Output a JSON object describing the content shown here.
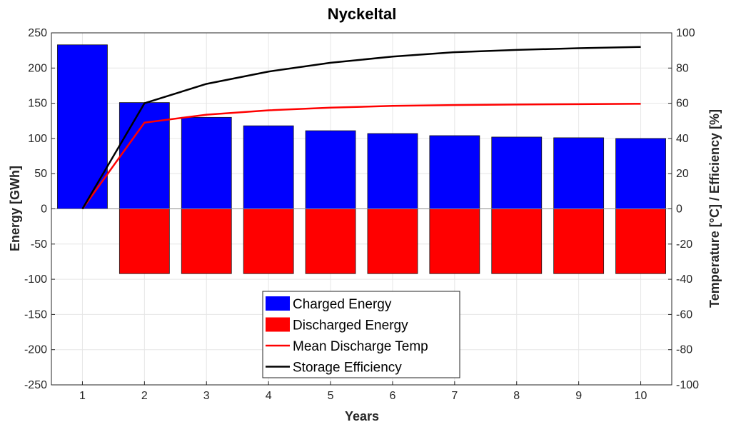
{
  "chart_data": {
    "type": "bar",
    "title": "Nyckeltal",
    "xlabel": "Years",
    "ylabel_left": "Energy [GWh]",
    "ylabel_right": "Temperature [°C] / Efficiency [%]",
    "x": [
      1,
      2,
      3,
      4,
      5,
      6,
      7,
      8,
      9,
      10
    ],
    "xlim": [
      0.5,
      10.5
    ],
    "ylim_left": [
      -250,
      250
    ],
    "ylim_right": [
      -100,
      100
    ],
    "yticks_left": [
      -250,
      -200,
      -150,
      -100,
      -50,
      0,
      50,
      100,
      150,
      200,
      250
    ],
    "yticks_right": [
      -100,
      -80,
      -60,
      -40,
      -20,
      0,
      20,
      40,
      60,
      80,
      100
    ],
    "grid": true,
    "legend_position": "bottom-center",
    "series": [
      {
        "name": "Charged Energy",
        "kind": "bar",
        "axis": "left",
        "color": "#0000ff",
        "values": [
          233,
          151,
          130,
          118,
          111,
          107,
          104,
          102,
          101,
          100
        ]
      },
      {
        "name": "Discharged Energy",
        "kind": "bar",
        "axis": "left",
        "color": "#ff0000",
        "values": [
          0,
          -92,
          -92,
          -92,
          -92,
          -92,
          -92,
          -92,
          -92,
          -92
        ]
      },
      {
        "name": "Mean Discharge Temp",
        "kind": "line",
        "axis": "right",
        "color": "#ff0000",
        "values": [
          0,
          49,
          53.5,
          56,
          57.5,
          58.5,
          59,
          59.3,
          59.5,
          59.7
        ]
      },
      {
        "name": "Storage Efficiency",
        "kind": "line",
        "axis": "right",
        "color": "#000000",
        "values": [
          0,
          60,
          71,
          78,
          83,
          86.5,
          89,
          90.3,
          91.3,
          92
        ]
      }
    ]
  }
}
